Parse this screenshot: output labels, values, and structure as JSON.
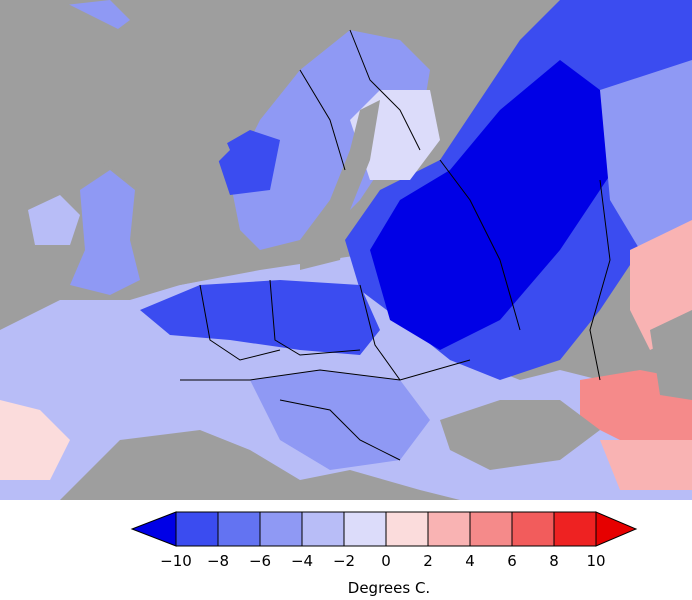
{
  "legend": {
    "title": "Degrees C.",
    "ticks": [
      "−10",
      "−8",
      "−6",
      "−4",
      "−2",
      "0",
      "2",
      "4",
      "6",
      "8",
      "10"
    ],
    "colors": [
      "#0000e6",
      "#3b4cf0",
      "#6373f2",
      "#8f99f4",
      "#b8bdf7",
      "#dcdcfa",
      "#fbdcdc",
      "#f9b3b3",
      "#f58a8a",
      "#f25c5c",
      "#ee2222",
      "#e60000"
    ]
  },
  "map": {
    "land_color": "#9e9e9e",
    "border_color": "#000000",
    "region": "Europe"
  }
}
